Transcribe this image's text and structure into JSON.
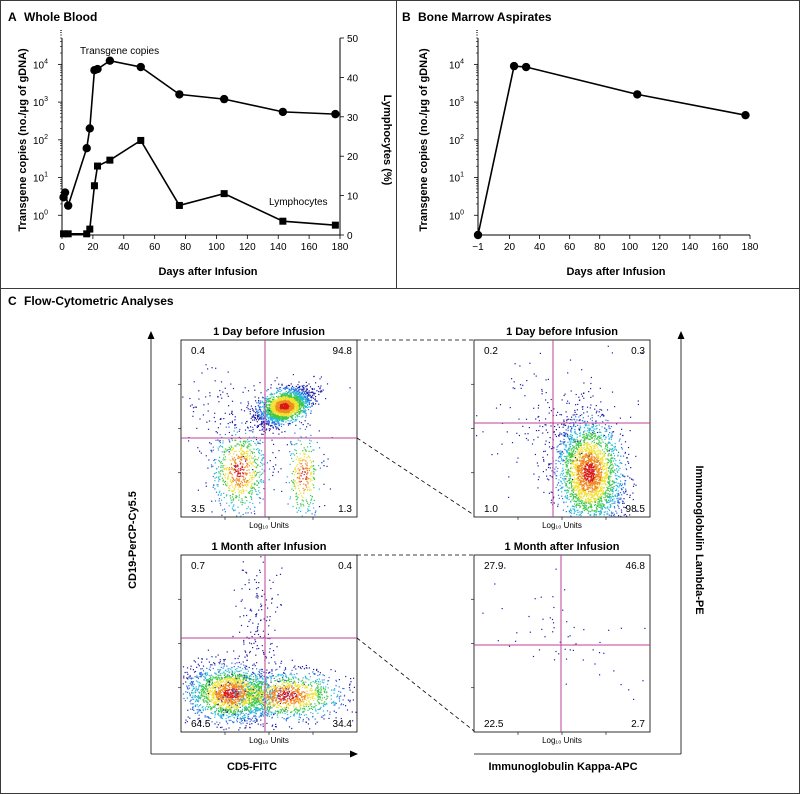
{
  "colors": {
    "frame": "#3a3a3a",
    "gate": "#c0409a",
    "series": "#000000",
    "density": [
      "#1c1ca8",
      "#2a6fe0",
      "#25b8d8",
      "#3ec84a",
      "#f0e030",
      "#f08a20",
      "#d81818"
    ]
  },
  "panel_a": {
    "letter": "A",
    "title": "Whole Blood",
    "xlabel": "Days after Infusion",
    "ylabel_left": "Transgene copies (no./μg of gDNA)",
    "ylabel_right": "Lymphocytes (%)",
    "x_ticks": [
      "0",
      "20",
      "40",
      "60",
      "80",
      "100",
      "120",
      "140",
      "160",
      "180"
    ],
    "y_left_ticks_base": [
      "10",
      "10",
      "10",
      "10",
      "10"
    ],
    "y_left_ticks_exp": [
      "0",
      "1",
      "2",
      "3",
      "4"
    ],
    "y_right_ticks": [
      "0",
      "10",
      "20",
      "30",
      "40",
      "50"
    ],
    "annotation_transgene": "Transgene copies",
    "annotation_lymph": "Lymphocytes"
  },
  "panel_b": {
    "letter": "B",
    "title": "Bone Marrow Aspirates",
    "xlabel": "Days after Infusion",
    "ylabel": "Transgene copies (no./μg of gDNA)",
    "x_ticks": [
      "−1",
      "20",
      "40",
      "60",
      "80",
      "100",
      "120",
      "140",
      "160",
      "180"
    ],
    "y_ticks_base": [
      "10",
      "10",
      "10",
      "10",
      "10"
    ],
    "y_ticks_exp": [
      "0",
      "1",
      "2",
      "3",
      "4"
    ]
  },
  "panel_c": {
    "letter": "C",
    "title": "Flow-Cytometric Analyses",
    "left_y_axis": "CD19-PerCP-Cy5.5",
    "left_x_axis": "CD5-FITC",
    "right_y_axis": "Immunoglobulin Lambda-PE",
    "right_x_axis": "Immunoglobulin Kappa-APC",
    "units_label": "Log₁₀ Units",
    "plots": [
      {
        "title": "1 Day before Infusion",
        "q_tl": "0.4",
        "q_tr": "94.8",
        "q_bl": "3.5",
        "q_br": "1.3"
      },
      {
        "title": "1 Day before Infusion",
        "q_tl": "0.2",
        "q_tr": "0.3",
        "q_bl": "1.0",
        "q_br": "98.5"
      },
      {
        "title": "1 Month after Infusion",
        "q_tl": "0.7",
        "q_tr": "0.4",
        "q_bl": "64.5",
        "q_br": "34.4"
      },
      {
        "title": "1 Month after Infusion",
        "q_tl": "27.9",
        "q_tr": "46.8",
        "q_bl": "22.5",
        "q_br": "2.7"
      }
    ]
  },
  "chart_data": [
    {
      "type": "line",
      "title": "Whole Blood",
      "xlabel": "Days after Infusion",
      "ylabel": "Transgene copies (no./μg of gDNA)",
      "y2label": "Lymphocytes (%)",
      "xlim": [
        0,
        180
      ],
      "ylim": [
        0.3,
        50000
      ],
      "yscale": "log",
      "y2lim": [
        0,
        50
      ],
      "series": [
        {
          "name": "Transgene copies",
          "axis": "left",
          "marker": "circle",
          "x": [
            1,
            2,
            4,
            16,
            18,
            21,
            23,
            31,
            51,
            76,
            105,
            143,
            177
          ],
          "y": [
            3,
            4,
            1.8,
            60,
            200,
            7000,
            7500,
            12500,
            8500,
            1600,
            1200,
            550,
            480
          ]
        },
        {
          "name": "Lymphocytes",
          "axis": "right",
          "marker": "square",
          "x": [
            1,
            4,
            16,
            18,
            21,
            23,
            31,
            51,
            76,
            105,
            143,
            177
          ],
          "y": [
            0.3,
            0.3,
            0.3,
            1.5,
            12.5,
            17.5,
            19,
            24,
            7.5,
            10.5,
            3.5,
            2.5
          ]
        }
      ]
    },
    {
      "type": "line",
      "title": "Bone Marrow Aspirates",
      "xlabel": "Days after Infusion",
      "ylabel": "Transgene copies (no./μg of gDNA)",
      "xlim": [
        -1,
        180
      ],
      "ylim": [
        0.3,
        50000
      ],
      "yscale": "log",
      "series": [
        {
          "marker": "circle",
          "x": [
            -1,
            23,
            31,
            105,
            177
          ],
          "y": [
            0.3,
            9000,
            8500,
            1600,
            450
          ]
        }
      ]
    }
  ]
}
